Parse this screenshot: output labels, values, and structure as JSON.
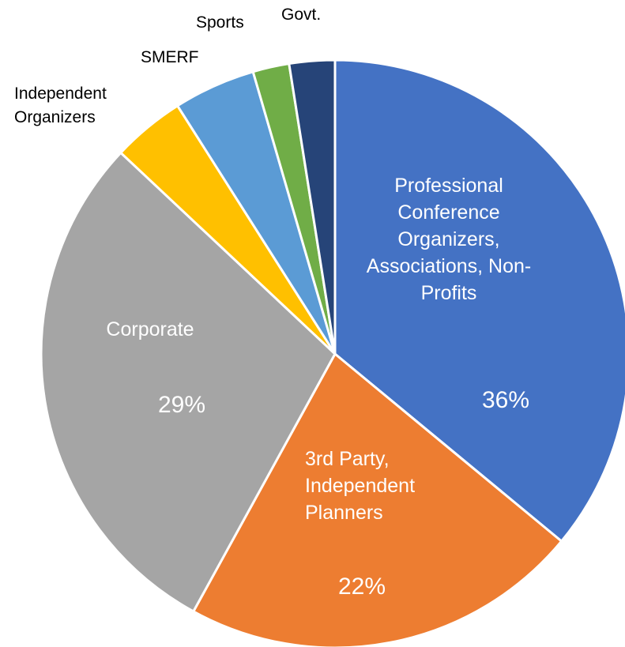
{
  "chart_data": {
    "type": "pie",
    "categories": [
      "Professional Conference Organizers, Associations, Non-Profits",
      "3rd Party, Independent Planners",
      "Corporate",
      "Independent Organizers",
      "SMERF",
      "Sports",
      "Govt."
    ],
    "values": [
      36,
      22,
      29,
      4,
      4.5,
      2,
      2.5
    ],
    "value_labels": [
      "36%",
      "22%",
      "29%",
      null,
      null,
      null,
      null
    ],
    "colors": [
      "#4472c4",
      "#ed7d31",
      "#a5a5a5",
      "#ffc000",
      "#5b9bd5",
      "#70ad47",
      "#264478"
    ]
  }
}
